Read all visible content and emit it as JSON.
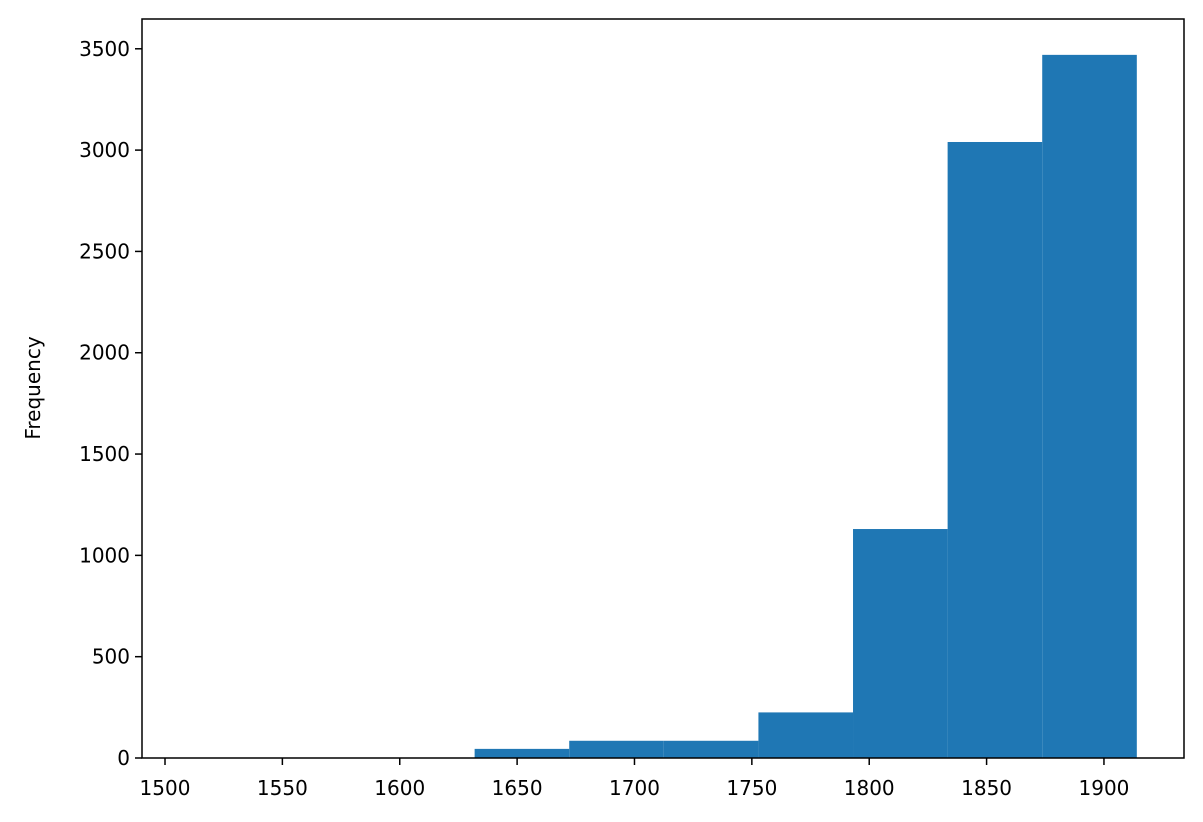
{
  "chart_data": {
    "type": "histogram",
    "y_label": "Frequency",
    "bins": [
      1511,
      1551.3,
      1591.6,
      1631.9,
      1672.2,
      1712.5,
      1752.8,
      1793.1,
      1833.4,
      1873.7,
      1914
    ],
    "values": [
      1,
      1,
      2,
      45,
      85,
      85,
      225,
      1130,
      3040,
      3470
    ],
    "color": "#1f77b4",
    "xlim": [
      1490.2,
      1934.1
    ],
    "xticks": [
      1500,
      1550,
      1600,
      1650,
      1700,
      1750,
      1800,
      1850,
      1900
    ],
    "ylim": [
      0,
      3647
    ],
    "yticks": [
      0,
      500,
      1000,
      1500,
      2000,
      2500,
      3000,
      3500
    ]
  }
}
